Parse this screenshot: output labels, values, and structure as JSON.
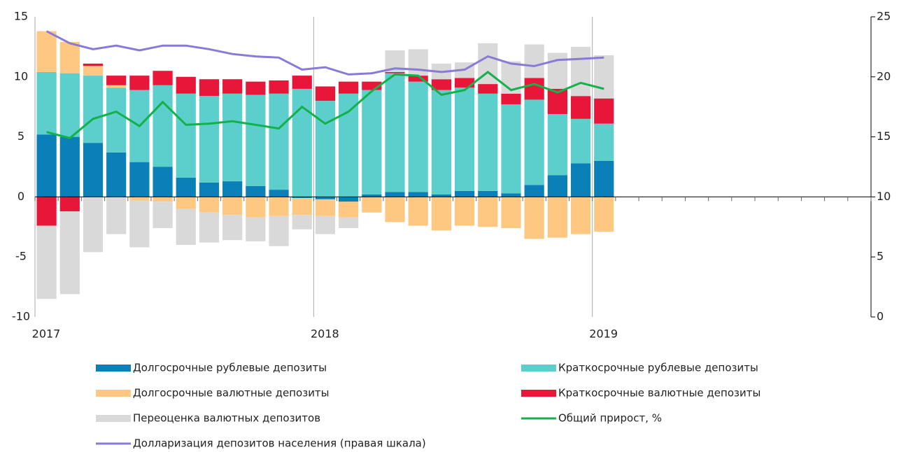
{
  "chart_data": {
    "type": "bar",
    "categories": [
      "2017",
      null,
      null,
      null,
      null,
      null,
      null,
      null,
      null,
      null,
      null,
      null,
      "2018",
      null,
      null,
      null,
      null,
      null,
      null,
      null,
      null,
      null,
      null,
      null,
      "2019",
      null,
      null,
      null,
      null,
      null,
      null,
      null,
      null,
      null,
      null,
      null
    ],
    "series": [
      {
        "name": "Долгосрочные рублевые депозиты",
        "color": "#0a7fb8",
        "values": [
          5.2,
          5.0,
          4.5,
          3.7,
          2.9,
          2.5,
          1.6,
          1.2,
          1.3,
          0.9,
          0.6,
          -0.1,
          -0.2,
          -0.4,
          0.2,
          0.4,
          0.4,
          0.2,
          0.5,
          0.5,
          0.3,
          1.0,
          1.8,
          2.8,
          3.0,
          null,
          null,
          null,
          null,
          null,
          null,
          null,
          null,
          null,
          null,
          null
        ]
      },
      {
        "name": "Краткосрочные рублевые депозиты",
        "color": "#5ccfcd",
        "values": [
          5.2,
          5.3,
          5.6,
          5.4,
          6.0,
          6.8,
          7.0,
          7.2,
          7.3,
          7.6,
          8.0,
          9.0,
          8.0,
          8.6,
          8.7,
          9.9,
          9.2,
          8.7,
          8.6,
          8.1,
          7.4,
          7.1,
          5.1,
          3.7,
          3.1,
          null,
          null,
          null,
          null,
          null,
          null,
          null,
          null,
          null,
          null,
          null
        ]
      },
      {
        "name": "Долгосрочные валютные депозиты",
        "color": "#fec882",
        "values": [
          3.4,
          2.6,
          0.8,
          0.2,
          -0.3,
          -0.4,
          -1.0,
          -1.3,
          -1.5,
          -1.7,
          -1.6,
          -1.4,
          -1.4,
          -1.3,
          -1.3,
          -2.1,
          -2.4,
          -2.8,
          -2.4,
          -2.5,
          -2.6,
          -3.5,
          -3.4,
          -3.1,
          -2.9,
          null,
          null,
          null,
          null,
          null,
          null,
          null,
          null,
          null,
          null,
          null
        ]
      },
      {
        "name": "Краткосрочные валютные депозиты",
        "color": "#e8173a",
        "values": [
          -2.4,
          -1.2,
          0.2,
          0.8,
          1.2,
          1.2,
          1.4,
          1.4,
          1.2,
          1.1,
          1.1,
          1.1,
          1.2,
          1.0,
          0.7,
          0.1,
          0.5,
          0.9,
          0.8,
          0.8,
          0.9,
          1.8,
          2.1,
          1.9,
          2.1,
          null,
          null,
          null,
          null,
          null,
          null,
          null,
          null,
          null,
          null,
          null
        ]
      },
      {
        "name": "Переоценка валютных депозитов",
        "color": "#d9d9d9",
        "values": [
          -6.1,
          -6.9,
          -4.6,
          -3.1,
          -3.9,
          -2.2,
          -3.0,
          -2.5,
          -2.1,
          -2.0,
          -2.5,
          -1.2,
          -1.5,
          -0.9,
          0,
          1.8,
          2.2,
          1.3,
          1.3,
          3.4,
          2.7,
          2.8,
          3.0,
          4.1,
          3.6,
          null,
          null,
          null,
          null,
          null,
          null,
          null,
          null,
          null,
          null,
          null
        ]
      },
      {
        "name": "Общий прирост, %",
        "color": "#14b04a",
        "type": "line",
        "axis": "y2",
        "values": [
          15.4,
          14.9,
          16.5,
          17.1,
          15.9,
          17.9,
          16.0,
          16.1,
          16.3,
          16.0,
          15.7,
          17.5,
          16.1,
          17.1,
          18.8,
          20.2,
          20.1,
          18.5,
          18.9,
          20.4,
          18.9,
          19.4,
          18.7,
          19.5,
          19.0,
          null,
          null,
          null,
          null,
          null,
          null,
          null,
          null,
          null,
          null,
          null
        ]
      },
      {
        "name": "Долларизация депозитов населения (правая шкала)",
        "color": "#8a7ad8",
        "type": "line",
        "axis": "y2",
        "values": [
          23.8,
          22.8,
          22.3,
          22.6,
          22.2,
          22.6,
          22.6,
          22.3,
          21.9,
          21.7,
          21.6,
          20.6,
          20.8,
          20.2,
          20.3,
          20.7,
          20.6,
          20.4,
          20.6,
          21.7,
          21.1,
          20.9,
          21.4,
          21.5,
          21.6,
          null,
          null,
          null,
          null,
          null,
          null,
          null,
          null,
          null,
          null,
          null
        ]
      }
    ],
    "stacked": true,
    "ylim": [
      -10,
      15
    ],
    "yticks": [
      -10,
      -5,
      0,
      5,
      10,
      15
    ],
    "y2lim": [
      0,
      25
    ],
    "y2ticks": [
      0,
      5,
      10,
      15,
      20,
      25
    ]
  }
}
